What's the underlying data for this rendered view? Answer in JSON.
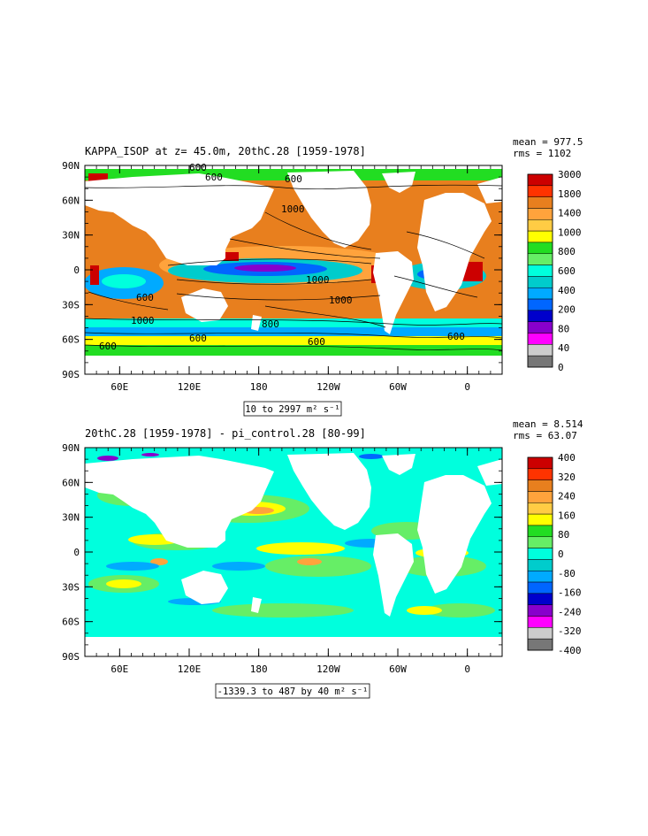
{
  "panels": [
    {
      "title": "KAPPA_ISOP at z=  45.0m, 20thC.28 [1959-1978]",
      "stats": {
        "mean": "mean = 977.5",
        "rms": "rms = 1102"
      },
      "range_note": "10 to 2997 m² s⁻¹",
      "contour_labels": [
        "600",
        "600",
        "600",
        "1000",
        "1000",
        "1000",
        "1000",
        "600",
        "600",
        "800",
        "600",
        "600",
        "600"
      ]
    },
    {
      "title": "20thC.28 [1959-1978] - pi_control.28 [80-99]",
      "stats": {
        "mean": "mean = 8.514",
        "rms": "rms = 63.07"
      },
      "range_note": "-1339.3 to 487 by 40 m² s⁻¹",
      "contour_labels": []
    }
  ],
  "chart_data": [
    {
      "type": "heatmap",
      "title": "KAPPA_ISOP at z=  45.0m, 20thC.28 [1959-1978]",
      "x_ticks": [
        "60E",
        "120E",
        "180",
        "120W",
        "60W",
        "0"
      ],
      "y_ticks": [
        "90N",
        "60N",
        "30N",
        "0",
        "30S",
        "60S",
        "90S"
      ],
      "colorbar": {
        "labels": [
          "3000",
          "1800",
          "1400",
          "1000",
          "800",
          "600",
          "400",
          "200",
          "80",
          "40",
          "0"
        ],
        "colors": [
          "#cc0000",
          "#ff3300",
          "#e87f1e",
          "#ffa33c",
          "#ffcc44",
          "#ffff00",
          "#22dd22",
          "#66ee66",
          "#00ffdd",
          "#00cccc",
          "#00aaff",
          "#0066ff",
          "#0000cc",
          "#8800cc",
          "#ff00ff",
          "#cccccc",
          "#777777"
        ]
      },
      "stats": {
        "mean": 977.5,
        "rms": 1102
      },
      "value_range": [
        10,
        2997
      ],
      "units": "m² s⁻¹"
    },
    {
      "type": "heatmap",
      "title": "20thC.28 [1959-1978] - pi_control.28 [80-99]",
      "x_ticks": [
        "60E",
        "120E",
        "180",
        "120W",
        "60W",
        "0"
      ],
      "y_ticks": [
        "90N",
        "60N",
        "30N",
        "0",
        "30S",
        "60S",
        "90S"
      ],
      "colorbar": {
        "labels": [
          "400",
          "320",
          "240",
          "160",
          "80",
          "0",
          "-80",
          "-160",
          "-240",
          "-320",
          "-400"
        ],
        "colors": [
          "#cc0000",
          "#ff3300",
          "#e87f1e",
          "#ffa33c",
          "#ffcc44",
          "#ffff00",
          "#22dd22",
          "#66ee66",
          "#00ffdd",
          "#00cccc",
          "#00aaff",
          "#0066ff",
          "#0000cc",
          "#8800cc",
          "#ff00ff",
          "#cccccc",
          "#777777"
        ]
      },
      "stats": {
        "mean": 8.514,
        "rms": 63.07
      },
      "value_range": [
        -1339.3,
        487
      ],
      "contour_interval": 40,
      "units": "m² s⁻¹"
    }
  ]
}
